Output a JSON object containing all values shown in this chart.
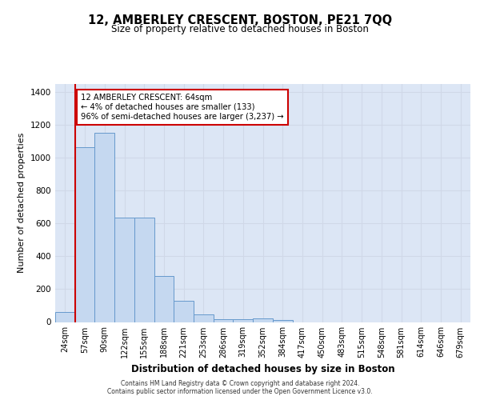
{
  "title": "12, AMBERLEY CRESCENT, BOSTON, PE21 7QQ",
  "subtitle": "Size of property relative to detached houses in Boston",
  "xlabel": "Distribution of detached houses by size in Boston",
  "ylabel": "Number of detached properties",
  "bin_labels": [
    "24sqm",
    "57sqm",
    "90sqm",
    "122sqm",
    "155sqm",
    "188sqm",
    "221sqm",
    "253sqm",
    "286sqm",
    "319sqm",
    "352sqm",
    "384sqm",
    "417sqm",
    "450sqm",
    "483sqm",
    "515sqm",
    "548sqm",
    "581sqm",
    "614sqm",
    "646sqm",
    "679sqm"
  ],
  "bar_values": [
    62,
    1065,
    1155,
    638,
    638,
    278,
    130,
    45,
    18,
    18,
    20,
    14,
    0,
    0,
    0,
    0,
    0,
    0,
    0,
    0,
    0
  ],
  "bar_color": "#c5d8f0",
  "bar_edge_color": "#6699cc",
  "ylim": [
    0,
    1450
  ],
  "yticks": [
    0,
    200,
    400,
    600,
    800,
    1000,
    1200,
    1400
  ],
  "annotation_text": "12 AMBERLEY CRESCENT: 64sqm\n← 4% of detached houses are smaller (133)\n96% of semi-detached houses are larger (3,237) →",
  "annotation_box_color": "#ffffff",
  "annotation_box_edge_color": "#cc0000",
  "property_line_color": "#cc0000",
  "grid_color": "#d0d8e8",
  "background_color": "#dce6f5",
  "footer_line1": "Contains HM Land Registry data © Crown copyright and database right 2024.",
  "footer_line2": "Contains public sector information licensed under the Open Government Licence v3.0."
}
